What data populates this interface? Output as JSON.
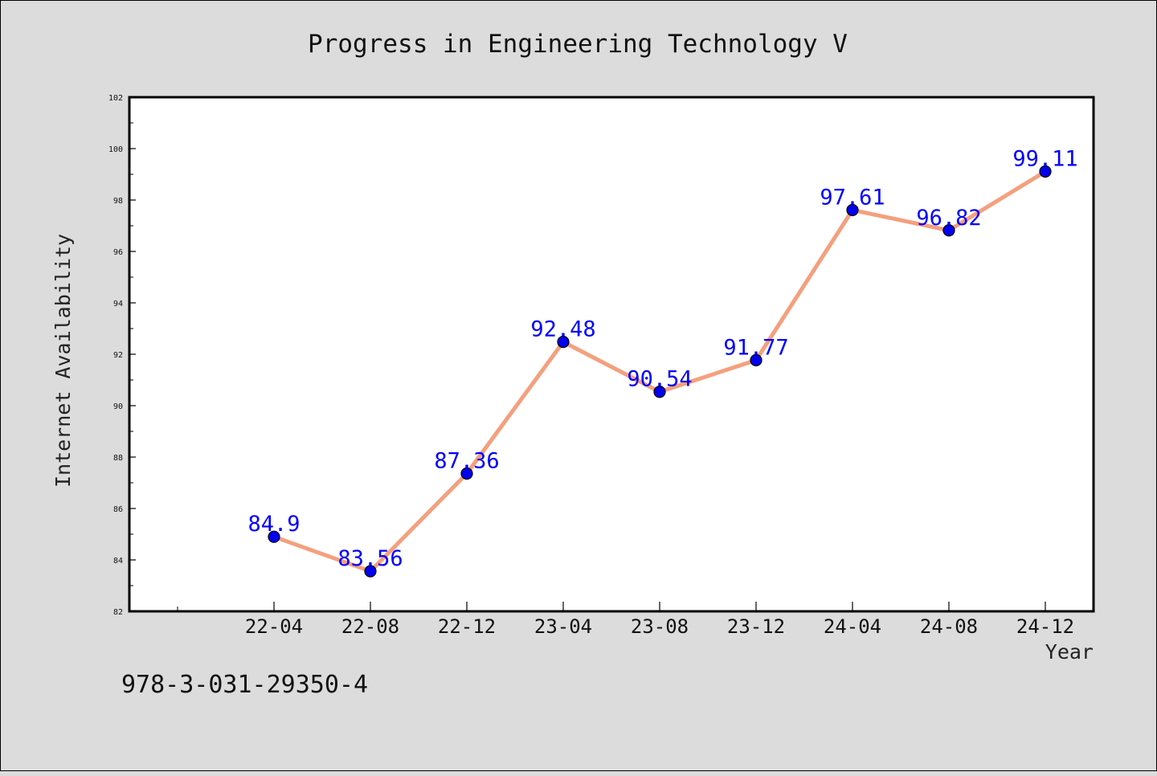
{
  "chart_data": {
    "type": "line",
    "title": "Progress in Engineering Technology V",
    "xlabel": "Year",
    "ylabel": "Internet Availability",
    "categories": [
      "22-04",
      "22-08",
      "22-12",
      "23-04",
      "23-08",
      "23-12",
      "24-04",
      "24-08",
      "24-12"
    ],
    "series": [
      {
        "values": [
          84.9,
          83.56,
          87.36,
          92.48,
          90.54,
          91.77,
          97.61,
          96.82,
          99.11
        ]
      }
    ],
    "data_labels": [
      "84.9",
      "83.56",
      "87.36",
      "92.48",
      "90.54",
      "91.77",
      "97.61",
      "96.82",
      "99.11"
    ],
    "ylim": [
      82,
      102
    ],
    "yticks": [
      82,
      84,
      86,
      88,
      90,
      92,
      94,
      96,
      98,
      100,
      102
    ],
    "ytick_labels": [
      "82",
      "84",
      "86",
      "88",
      "90",
      "92",
      "94",
      "96",
      "98",
      "100",
      "102"
    ],
    "grid": false,
    "line_color": "#f4a07e",
    "marker_color": "#0000ee",
    "label_color": "#0000ff",
    "plot_background": "#ffffff"
  },
  "footer": {
    "code": "978-3-031-29350-4"
  }
}
